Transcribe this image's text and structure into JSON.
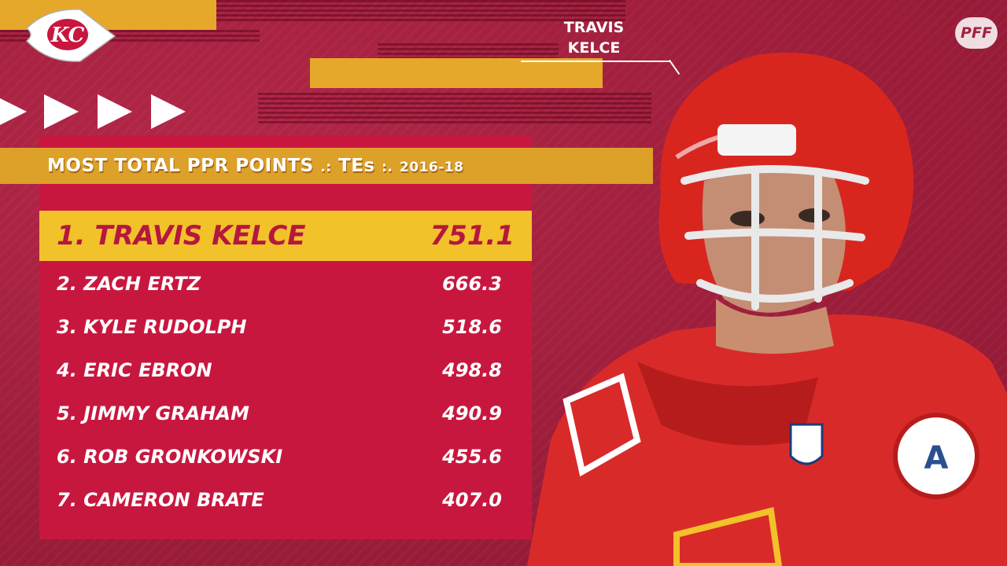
{
  "header": {
    "title": "MOST TOTAL PPR POINTS",
    "separator_1": ".:",
    "position": "TEs",
    "separator_2": ":.",
    "seasons": "2016-18"
  },
  "callout": {
    "first": "TRAVIS",
    "last": "KELCE"
  },
  "brand": {
    "text": "PFF"
  },
  "leader": {
    "name": "1. TRAVIS KELCE",
    "points": "751.1"
  },
  "rows": [
    {
      "name": "2. ZACH ERTZ",
      "points": "666.3"
    },
    {
      "name": "3. KYLE RUDOLPH",
      "points": "518.6"
    },
    {
      "name": "4. ERIC EBRON",
      "points": "498.8"
    },
    {
      "name": "5. JIMMY GRAHAM",
      "points": "490.9"
    },
    {
      "name": "6. ROB GRONKOWSKI",
      "points": "455.6"
    },
    {
      "name": "7. CAMERON BRATE",
      "points": "407.0"
    }
  ],
  "logo": {
    "icon": "arrowhead-logo-icon",
    "lettering": "KC"
  },
  "colors": {
    "background": "#a3213f",
    "panel": "#c8173f",
    "gold": "#e6a82a",
    "leader_bar": "#f2c22a",
    "leader_text": "#b5173f",
    "text": "#ffffff"
  }
}
